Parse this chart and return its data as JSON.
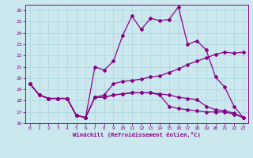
{
  "xlabel": "Windchill (Refroidissement éolien,°C)",
  "background_color": "#cbe8ee",
  "grid_color": "#b0d8df",
  "line_color": "#880088",
  "xlim": [
    -0.5,
    23.5
  ],
  "ylim": [
    16,
    26.5
  ],
  "xticks": [
    0,
    1,
    2,
    3,
    4,
    5,
    6,
    7,
    8,
    9,
    10,
    11,
    12,
    13,
    14,
    15,
    16,
    17,
    18,
    19,
    20,
    21,
    22,
    23
  ],
  "yticks": [
    16,
    17,
    18,
    19,
    20,
    21,
    22,
    23,
    24,
    25,
    26
  ],
  "line1_x": [
    0,
    1,
    2,
    3,
    4,
    5,
    6,
    7,
    8,
    9,
    10,
    11,
    12,
    13,
    14,
    15,
    16,
    17,
    18,
    19,
    20,
    21,
    22,
    23
  ],
  "line1_y": [
    19.5,
    18.5,
    18.2,
    18.2,
    18.2,
    16.7,
    16.5,
    21.0,
    20.7,
    21.5,
    23.8,
    25.5,
    24.3,
    25.3,
    25.1,
    25.2,
    26.3,
    23.0,
    23.3,
    22.5,
    20.1,
    19.2,
    17.5,
    16.5
  ],
  "line2_x": [
    0,
    1,
    2,
    3,
    4,
    5,
    6,
    7,
    8,
    9,
    10,
    11,
    12,
    13,
    14,
    15,
    16,
    17,
    18,
    19,
    20,
    21,
    22,
    23
  ],
  "line2_y": [
    19.5,
    18.5,
    18.2,
    18.2,
    18.2,
    16.7,
    16.5,
    18.3,
    18.5,
    19.5,
    19.7,
    19.8,
    19.9,
    20.1,
    20.2,
    20.5,
    20.8,
    21.2,
    21.5,
    21.8,
    22.1,
    22.3,
    22.2,
    22.3
  ],
  "line3_x": [
    0,
    1,
    2,
    3,
    4,
    5,
    6,
    7,
    8,
    9,
    10,
    11,
    12,
    13,
    14,
    15,
    16,
    17,
    18,
    19,
    20,
    21,
    22,
    23
  ],
  "line3_y": [
    19.5,
    18.5,
    18.2,
    18.2,
    18.2,
    16.7,
    16.5,
    18.3,
    18.3,
    18.5,
    18.6,
    18.7,
    18.7,
    18.7,
    18.6,
    18.5,
    18.3,
    18.2,
    18.1,
    17.5,
    17.2,
    17.1,
    16.9,
    16.5
  ],
  "line4_x": [
    0,
    1,
    2,
    3,
    4,
    5,
    6,
    7,
    8,
    9,
    10,
    11,
    12,
    13,
    14,
    15,
    16,
    17,
    18,
    19,
    20,
    21,
    22,
    23
  ],
  "line4_y": [
    19.5,
    18.5,
    18.2,
    18.2,
    18.2,
    16.7,
    16.5,
    18.3,
    18.3,
    18.5,
    18.6,
    18.7,
    18.7,
    18.7,
    18.5,
    17.5,
    17.3,
    17.2,
    17.1,
    17.0,
    17.0,
    17.0,
    16.8,
    16.5
  ]
}
